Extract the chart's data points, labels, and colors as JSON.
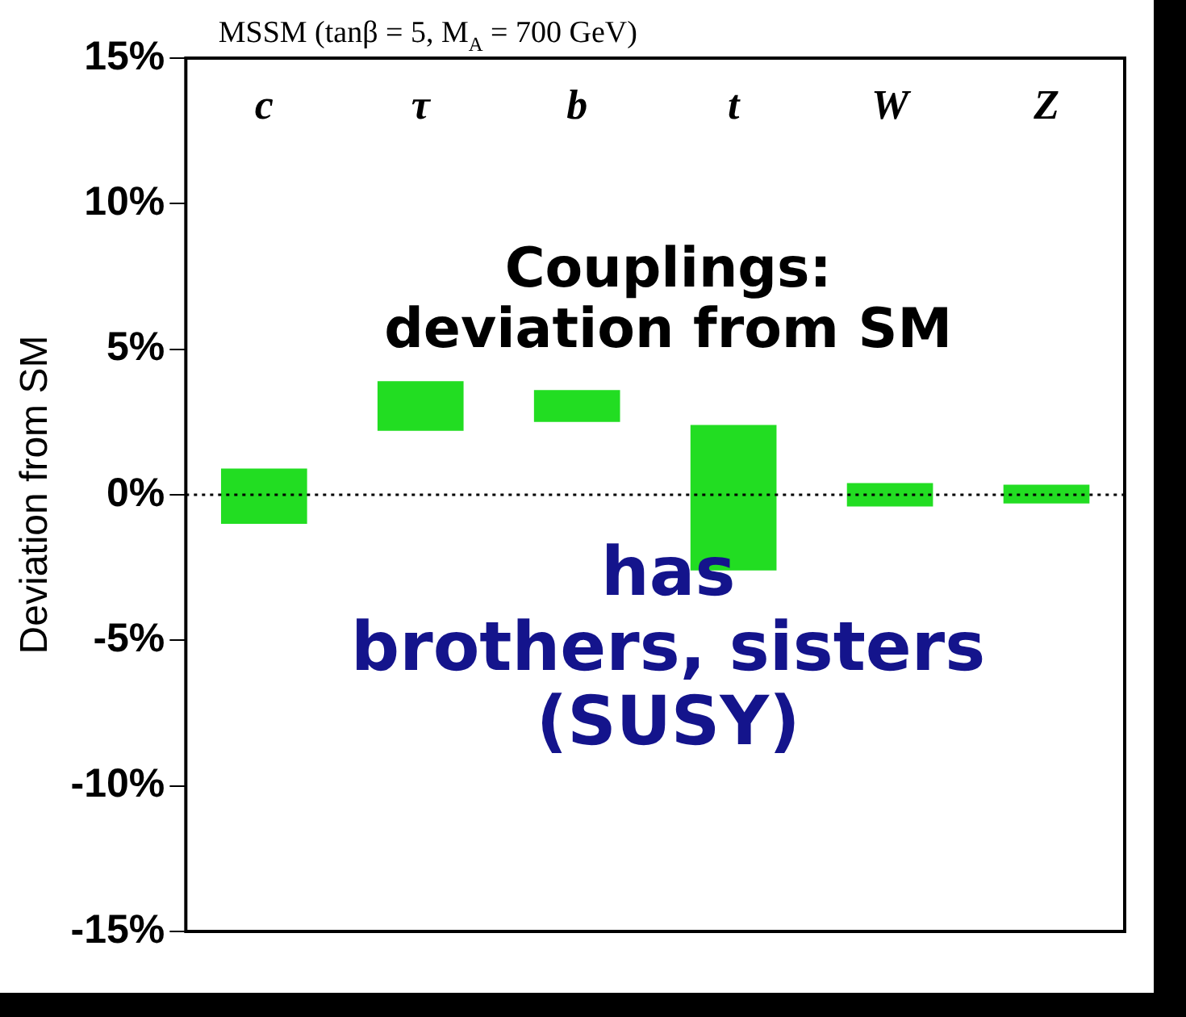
{
  "chart_data": {
    "type": "bar",
    "title": "MSSM (tanβ = 5, M$_{A}$ = 700 GeV)",
    "ylabel": "Deviation from SM",
    "categories": [
      "c",
      "τ",
      "b",
      "t",
      "W",
      "Z"
    ],
    "base": [
      -1.0,
      2.2,
      2.5,
      -2.6,
      -0.4,
      -0.3
    ],
    "values": [
      1.9,
      1.7,
      1.1,
      5.0,
      0.8,
      0.65
    ],
    "color": "#22dd22",
    "ylim": [
      -15,
      15
    ],
    "yticks": [
      {
        "value": -15,
        "label": "-15%"
      },
      {
        "value": -10,
        "label": "-10%"
      },
      {
        "value": -5,
        "label": "-5%"
      },
      {
        "value": 0,
        "label": "0%"
      },
      {
        "value": 5,
        "label": "5%"
      },
      {
        "value": 10,
        "label": "10%"
      },
      {
        "value": 15,
        "label": "15%"
      }
    ],
    "ref_lines": [
      {
        "axis": "y",
        "value": 0,
        "line_style": "dotted",
        "color": "#000000"
      }
    ],
    "annotations": [
      "Couplings:\ndeviation from SM",
      "has\nbrothers, sisters\n(SUSY)"
    ],
    "grid": false,
    "legend": false
  }
}
